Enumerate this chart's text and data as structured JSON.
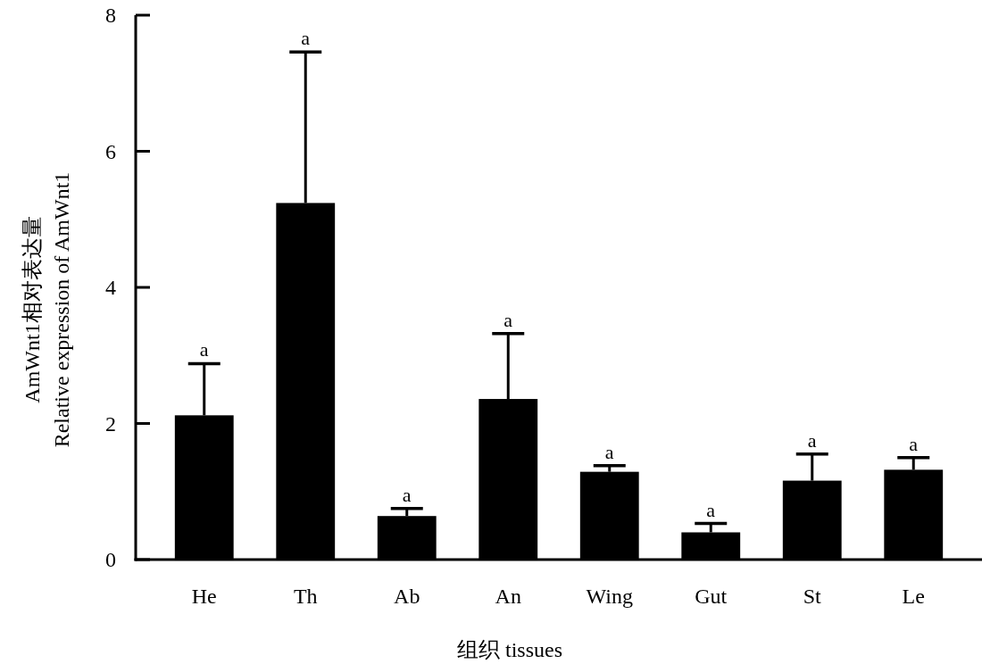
{
  "chart_data": {
    "type": "bar",
    "xlabel": "组织 tissues",
    "ylabel": "AmWnt1相对表达量\nRelative expression of AmWnt1",
    "categories": [
      "He",
      "Th",
      "Ab",
      "An",
      "Wing",
      "Gut",
      "St",
      "Le"
    ],
    "values": [
      2.12,
      5.24,
      0.64,
      2.36,
      1.29,
      0.4,
      1.16,
      1.32
    ],
    "errors": [
      [
        2.12,
        2.88
      ],
      [
        5.24,
        7.46
      ],
      [
        0.64,
        0.75
      ],
      [
        2.36,
        3.32
      ],
      [
        1.29,
        1.38
      ],
      [
        0.4,
        0.53
      ],
      [
        1.16,
        1.55
      ],
      [
        1.32,
        1.5
      ]
    ],
    "color": "#000000",
    "ylim": [
      0,
      8
    ],
    "yticks": [
      0,
      2,
      4,
      6,
      8
    ],
    "annotations": [
      {
        "text": "a",
        "x": "He",
        "y": 2.88
      },
      {
        "text": "a",
        "x": "Th",
        "y": 7.46
      },
      {
        "text": "a",
        "x": "Ab",
        "y": 0.75
      },
      {
        "text": "a",
        "x": "An",
        "y": 3.32
      },
      {
        "text": "a",
        "x": "Wing",
        "y": 1.38
      },
      {
        "text": "a",
        "x": "Gut",
        "y": 0.53
      },
      {
        "text": "a",
        "x": "St",
        "y": 1.55
      },
      {
        "text": "a",
        "x": "Le",
        "y": 1.5
      }
    ]
  }
}
